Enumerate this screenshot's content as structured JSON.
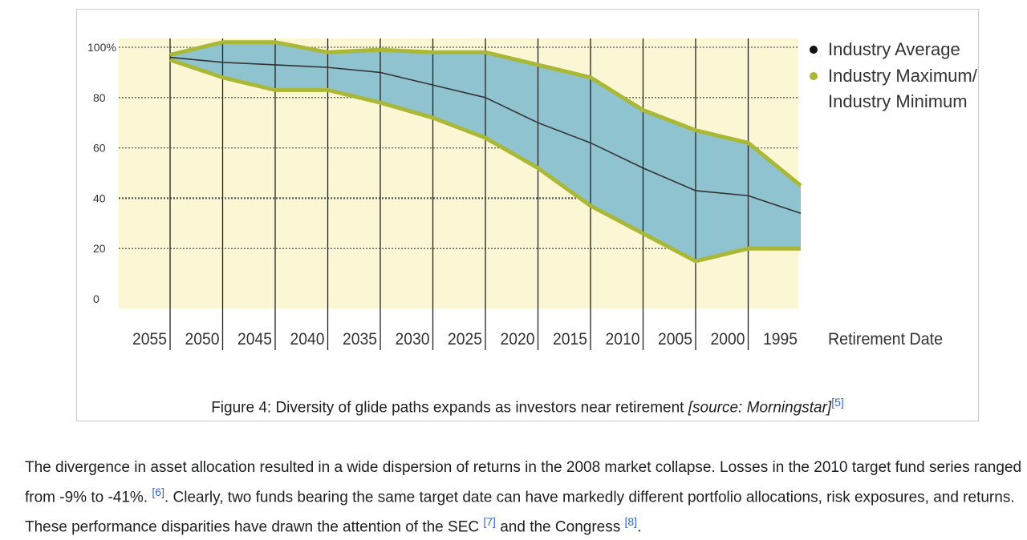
{
  "chart_data": {
    "type": "area",
    "title": "Figure 4: Diversity of glide paths expands as investors near retirement",
    "xlabel": "Retirement Date",
    "ylabel": "",
    "categories": [
      "2055",
      "2050",
      "2045",
      "2040",
      "2035",
      "2030",
      "2025",
      "2020",
      "2015",
      "2010",
      "2005",
      "2000",
      "1995"
    ],
    "ylim": [
      0,
      100
    ],
    "y_ticks": [
      "100%",
      "80",
      "60",
      "40",
      "20",
      "0"
    ],
    "y_tick_values": [
      100,
      80,
      60,
      40,
      20,
      0
    ],
    "series": [
      {
        "name": "Industry Maximum",
        "values": [
          97,
          102,
          102,
          98,
          99,
          98,
          98,
          93,
          88,
          75,
          67,
          62,
          45
        ]
      },
      {
        "name": "Industry Minimum",
        "values": [
          95,
          88,
          83,
          83,
          78,
          72,
          64,
          52,
          37,
          26,
          15,
          20,
          20
        ]
      },
      {
        "name": "Industry Average",
        "values": [
          96,
          94,
          93,
          92,
          90,
          85,
          80,
          70,
          62,
          52,
          43,
          41,
          34
        ]
      }
    ],
    "legend": [
      {
        "label": "Industry Average",
        "color": "#111111"
      },
      {
        "label": "Industry Maximum/",
        "color": "#a9b836"
      },
      {
        "label": "Industry Minimum",
        "color": ""
      }
    ],
    "grid": true,
    "colors": {
      "band": "#8fc3d0",
      "band_edge": "#a9b836",
      "background": "#fbf6d4",
      "average": "#333333"
    }
  },
  "caption": {
    "text": "Figure 4: Diversity of glide paths expands as investors near retirement ",
    "source": "[source: Morningstar]",
    "ref": "[5]"
  },
  "paragraph": {
    "part1": "The divergence in asset allocation resulted in a wide dispersion of returns in the 2008 market collapse. Losses in the 2010 target fund series ranged from -9% to -41%. ",
    "ref6": "[6]",
    "part2": ". Clearly, two funds bearing the same target date can have markedly different portfolio allocations, risk exposures, and returns. These performance disparities have drawn the attention of the SEC ",
    "ref7": "[7]",
    "part3": " and the Congress ",
    "ref8": "[8]",
    "part4": "."
  }
}
